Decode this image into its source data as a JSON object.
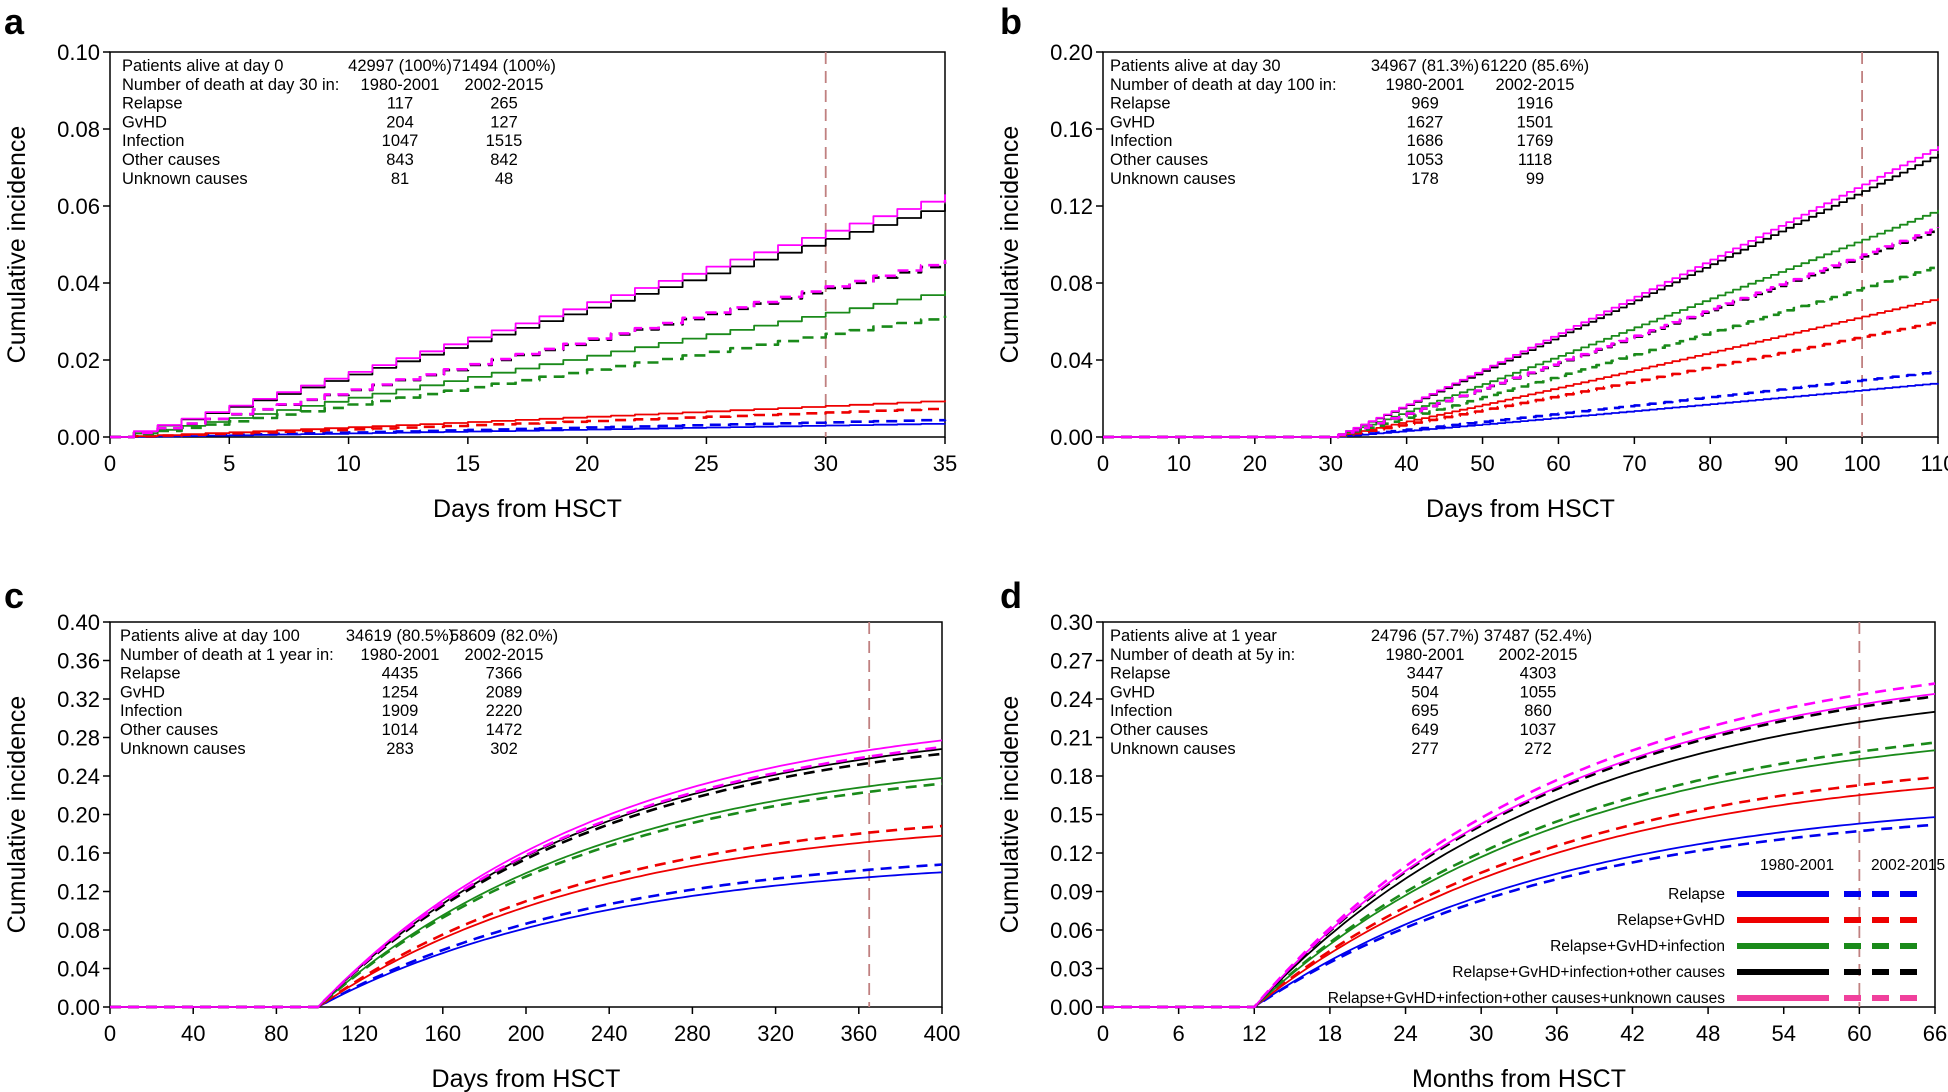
{
  "colors": {
    "relapse": "#0000ee",
    "gvhd": "#ee0000",
    "infection": "#1a8a1a",
    "other": "#000000",
    "unknown": "#ff00ff",
    "ref_line": "#c08080",
    "legend_unknown": "#f0409c"
  },
  "legend": {
    "header_1": "1980-2001",
    "header_2": "2002-2015",
    "entries": [
      {
        "label": "Relapse",
        "color": "#0000ee"
      },
      {
        "label": "Relapse+GvHD",
        "color": "#ee0000"
      },
      {
        "label": "Relapse+GvHD+infection",
        "color": "#1a8a1a"
      },
      {
        "label": "Relapse+GvHD+infection+other causes",
        "color": "#000000"
      },
      {
        "label": "Relapse+GvHD+infection+other causes+unknown causes",
        "color": "#f0409c"
      }
    ]
  },
  "chart_data": [
    {
      "panel": "a",
      "type": "line",
      "line_style": "step",
      "xlabel": "Days from HSCT",
      "ylabel": "Cumulative incidence",
      "xlim": [
        0,
        35
      ],
      "ylim": [
        0,
        0.1
      ],
      "xticks": [
        "0",
        "5",
        "10",
        "15",
        "20",
        "25",
        "30",
        "35"
      ],
      "yticks": [
        "0.00",
        "0.02",
        "0.04",
        "0.06",
        "0.08",
        "0.10"
      ],
      "vline": 30,
      "start": 0,
      "table": {
        "alive_label": "Patients alive at day 0",
        "alive_1": "42997 (100%)",
        "alive_2": "71494 (100%)",
        "death_label": "Number of death at day 30 in:",
        "period_1": "1980-2001",
        "period_2": "2002-2015",
        "rows": [
          {
            "cause": "Relapse",
            "v1": "117",
            "v2": "265"
          },
          {
            "cause": "GvHD",
            "v1": "204",
            "v2": "127"
          },
          {
            "cause": "Infection",
            "v1": "1047",
            "v2": "1515"
          },
          {
            "cause": "Other causes",
            "v1": "843",
            "v2": "842"
          },
          {
            "cause": "Unknown causes",
            "v1": "81",
            "v2": "48"
          }
        ]
      },
      "series": [
        {
          "name": "Relapse (1980-2001)",
          "period": "1980-2001",
          "group": "relapse",
          "end": 0.0035
        },
        {
          "name": "Relapse (2002-2015)",
          "period": "2002-2015",
          "group": "relapse",
          "end": 0.0045
        },
        {
          "name": "Relapse+GvHD (1980-2001)",
          "period": "1980-2001",
          "group": "gvhd",
          "end": 0.0095
        },
        {
          "name": "Relapse+GvHD (2002-2015)",
          "period": "2002-2015",
          "group": "gvhd",
          "end": 0.0075
        },
        {
          "name": "Relapse+GvHD+infection (1980-2001)",
          "period": "1980-2001",
          "group": "infection",
          "end": 0.038
        },
        {
          "name": "Relapse+GvHD+infection (2002-2015)",
          "period": "2002-2015",
          "group": "infection",
          "end": 0.0315
        },
        {
          "name": "Relapse+GvHD+infection+other causes (1980-2001)",
          "period": "1980-2001",
          "group": "other",
          "end": 0.0605
        },
        {
          "name": "Relapse+GvHD+infection+other causes (2002-2015)",
          "period": "2002-2015",
          "group": "other",
          "end": 0.0455
        },
        {
          "name": "All causes (1980-2001)",
          "period": "1980-2001",
          "group": "unknown",
          "end": 0.063
        },
        {
          "name": "All causes (2002-2015)",
          "period": "2002-2015",
          "group": "unknown",
          "end": 0.046
        }
      ]
    },
    {
      "panel": "b",
      "type": "line",
      "line_style": "step",
      "xlabel": "Days from HSCT",
      "ylabel": "Cumulative incidence",
      "xlim": [
        0,
        110
      ],
      "ylim": [
        0,
        0.2
      ],
      "xticks": [
        "0",
        "10",
        "20",
        "30",
        "40",
        "50",
        "60",
        "70",
        "80",
        "90",
        "100",
        "110"
      ],
      "yticks": [
        "0.00",
        "0.04",
        "0.08",
        "0.12",
        "0.16",
        "0.20"
      ],
      "vline": 100,
      "start": 30,
      "table": {
        "alive_label": "Patients alive at day 30",
        "alive_1": "34967 (81.3%)",
        "alive_2": "61220 (85.6%)",
        "death_label": "Number of death at day 100 in:",
        "period_1": "1980-2001",
        "period_2": "2002-2015",
        "rows": [
          {
            "cause": "Relapse",
            "v1": "969",
            "v2": "1916"
          },
          {
            "cause": "GvHD",
            "v1": "1627",
            "v2": "1501"
          },
          {
            "cause": "Infection",
            "v1": "1686",
            "v2": "1769"
          },
          {
            "cause": "Other causes",
            "v1": "1053",
            "v2": "1118"
          },
          {
            "cause": "Unknown causes",
            "v1": "178",
            "v2": "99"
          }
        ]
      },
      "series": [
        {
          "name": "Relapse (1980-2001)",
          "period": "1980-2001",
          "group": "relapse",
          "end": 0.028
        },
        {
          "name": "Relapse (2002-2015)",
          "period": "2002-2015",
          "group": "relapse",
          "end": 0.034
        },
        {
          "name": "Relapse+GvHD (1980-2001)",
          "period": "1980-2001",
          "group": "gvhd",
          "end": 0.072
        },
        {
          "name": "Relapse+GvHD (2002-2015)",
          "period": "2002-2015",
          "group": "gvhd",
          "end": 0.06
        },
        {
          "name": "Relapse+GvHD+infection (1980-2001)",
          "period": "1980-2001",
          "group": "infection",
          "end": 0.118
        },
        {
          "name": "Relapse+GvHD+infection (2002-2015)",
          "period": "2002-2015",
          "group": "infection",
          "end": 0.089
        },
        {
          "name": "Relapse+GvHD+infection+other causes (1980-2001)",
          "period": "1980-2001",
          "group": "other",
          "end": 0.147
        },
        {
          "name": "Relapse+GvHD+infection+other causes (2002-2015)",
          "period": "2002-2015",
          "group": "other",
          "end": 0.108
        },
        {
          "name": "All causes (1980-2001)",
          "period": "1980-2001",
          "group": "unknown",
          "end": 0.151
        },
        {
          "name": "All causes (2002-2015)",
          "period": "2002-2015",
          "group": "unknown",
          "end": 0.109
        }
      ]
    },
    {
      "panel": "c",
      "type": "line",
      "line_style": "curve",
      "xlabel": "Days from HSCT",
      "ylabel": "Cumulative incidence",
      "xlim": [
        0,
        400
      ],
      "ylim": [
        0,
        0.4
      ],
      "xticks": [
        "0",
        "40",
        "80",
        "120",
        "160",
        "200",
        "240",
        "280",
        "320",
        "360",
        "400"
      ],
      "yticks": [
        "0.00",
        "0.04",
        "0.08",
        "0.12",
        "0.16",
        "0.20",
        "0.24",
        "0.28",
        "0.32",
        "0.36",
        "0.40"
      ],
      "vline": 365,
      "start": 100,
      "table": {
        "alive_label": "Patients alive at day 100",
        "alive_1": "34619 (80.5%)",
        "alive_2": "58609 (82.0%)",
        "death_label": "Number of death at 1 year in:",
        "period_1": "1980-2001",
        "period_2": "2002-2015",
        "rows": [
          {
            "cause": "Relapse",
            "v1": "4435",
            "v2": "7366"
          },
          {
            "cause": "GvHD",
            "v1": "1254",
            "v2": "2089"
          },
          {
            "cause": "Infection",
            "v1": "1909",
            "v2": "2220"
          },
          {
            "cause": "Other causes",
            "v1": "1014",
            "v2": "1472"
          },
          {
            "cause": "Unknown causes",
            "v1": "283",
            "v2": "302"
          }
        ]
      },
      "series": [
        {
          "name": "Relapse (1980-2001)",
          "period": "1980-2001",
          "group": "relapse",
          "end": 0.14
        },
        {
          "name": "Relapse (2002-2015)",
          "period": "2002-2015",
          "group": "relapse",
          "end": 0.148
        },
        {
          "name": "Relapse+GvHD (1980-2001)",
          "period": "1980-2001",
          "group": "gvhd",
          "end": 0.178
        },
        {
          "name": "Relapse+GvHD (2002-2015)",
          "period": "2002-2015",
          "group": "gvhd",
          "end": 0.188
        },
        {
          "name": "Relapse+GvHD+infection (1980-2001)",
          "period": "1980-2001",
          "group": "infection",
          "end": 0.238
        },
        {
          "name": "Relapse+GvHD+infection (2002-2015)",
          "period": "2002-2015",
          "group": "infection",
          "end": 0.232
        },
        {
          "name": "Relapse+GvHD+infection+other causes (1980-2001)",
          "period": "1980-2001",
          "group": "other",
          "end": 0.268
        },
        {
          "name": "Relapse+GvHD+infection+other causes (2002-2015)",
          "period": "2002-2015",
          "group": "other",
          "end": 0.263
        },
        {
          "name": "All causes (1980-2001)",
          "period": "1980-2001",
          "group": "unknown",
          "end": 0.277
        },
        {
          "name": "All causes (2002-2015)",
          "period": "2002-2015",
          "group": "unknown",
          "end": 0.27
        }
      ]
    },
    {
      "panel": "d",
      "type": "line",
      "line_style": "curve",
      "xlabel": "Months from HSCT",
      "ylabel": "Cumulative incidence",
      "xlim": [
        0,
        66
      ],
      "ylim": [
        0,
        0.3
      ],
      "xticks": [
        "0",
        "6",
        "12",
        "18",
        "24",
        "30",
        "36",
        "42",
        "48",
        "54",
        "60",
        "66"
      ],
      "yticks": [
        "0.00",
        "0.03",
        "0.06",
        "0.09",
        "0.12",
        "0.15",
        "0.18",
        "0.21",
        "0.24",
        "0.27",
        "0.30"
      ],
      "vline": 60,
      "start": 12,
      "table": {
        "alive_label": "Patients alive at 1 year",
        "alive_1": "24796 (57.7%)",
        "alive_2": "37487 (52.4%)",
        "death_label": "Number of death at 5y in:",
        "period_1": "1980-2001",
        "period_2": "2002-2015",
        "rows": [
          {
            "cause": "Relapse",
            "v1": "3447",
            "v2": "4303"
          },
          {
            "cause": "GvHD",
            "v1": "504",
            "v2": "1055"
          },
          {
            "cause": "Infection",
            "v1": "695",
            "v2": "860"
          },
          {
            "cause": "Other causes",
            "v1": "649",
            "v2": "1037"
          },
          {
            "cause": "Unknown causes",
            "v1": "277",
            "v2": "272"
          }
        ]
      },
      "series": [
        {
          "name": "Relapse (1980-2001)",
          "period": "1980-2001",
          "group": "relapse",
          "end": 0.148
        },
        {
          "name": "Relapse (2002-2015)",
          "period": "2002-2015",
          "group": "relapse",
          "end": 0.142
        },
        {
          "name": "Relapse+GvHD (1980-2001)",
          "period": "1980-2001",
          "group": "gvhd",
          "end": 0.171
        },
        {
          "name": "Relapse+GvHD (2002-2015)",
          "period": "2002-2015",
          "group": "gvhd",
          "end": 0.179
        },
        {
          "name": "Relapse+GvHD+infection (1980-2001)",
          "period": "1980-2001",
          "group": "infection",
          "end": 0.2
        },
        {
          "name": "Relapse+GvHD+infection (2002-2015)",
          "period": "2002-2015",
          "group": "infection",
          "end": 0.206
        },
        {
          "name": "Relapse+GvHD+infection+other causes (1980-2001)",
          "period": "1980-2001",
          "group": "other",
          "end": 0.23
        },
        {
          "name": "Relapse+GvHD+infection+other causes (2002-2015)",
          "period": "2002-2015",
          "group": "other",
          "end": 0.242
        },
        {
          "name": "All causes (1980-2001)",
          "period": "1980-2001",
          "group": "unknown",
          "end": 0.244
        },
        {
          "name": "All causes (2002-2015)",
          "period": "2002-2015",
          "group": "unknown",
          "end": 0.252
        }
      ]
    }
  ]
}
